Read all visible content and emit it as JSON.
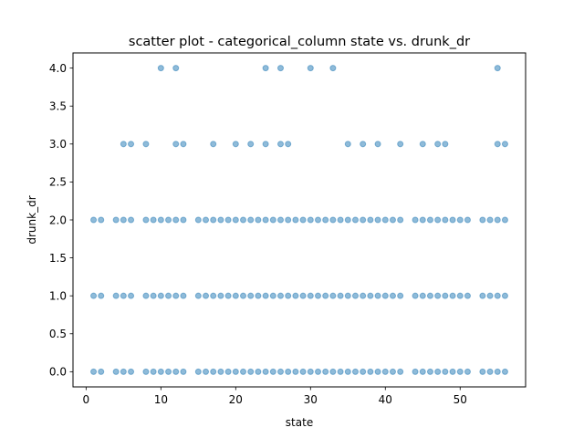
{
  "chart_data": {
    "type": "scatter",
    "title": "scatter plot - categorical_column state vs. drunk_dr",
    "xlabel": "state",
    "ylabel": "drunk_dr",
    "xlim": [
      -1.75,
      58.75
    ],
    "ylim": [
      -0.2,
      4.2
    ],
    "xticks": [
      0,
      10,
      20,
      30,
      40,
      50
    ],
    "yticks": [
      0.0,
      0.5,
      1.0,
      1.5,
      2.0,
      2.5,
      3.0,
      3.5,
      4.0
    ],
    "ytick_labels": [
      "0.0",
      "0.5",
      "1.0",
      "1.5",
      "2.0",
      "2.5",
      "3.0",
      "3.5",
      "4.0"
    ],
    "xtick_labels": [
      "0",
      "10",
      "20",
      "30",
      "40",
      "50"
    ],
    "grid": false,
    "point_color": "#1f77b4",
    "point_alpha": 0.5,
    "series": [
      {
        "y": 0,
        "x": [
          1,
          2,
          4,
          5,
          6,
          8,
          9,
          10,
          11,
          12,
          13,
          15,
          16,
          17,
          18,
          19,
          20,
          21,
          22,
          23,
          24,
          25,
          26,
          27,
          28,
          29,
          30,
          31,
          32,
          33,
          34,
          35,
          36,
          37,
          38,
          39,
          40,
          41,
          42,
          44,
          45,
          46,
          47,
          48,
          49,
          50,
          51,
          53,
          54,
          55,
          56
        ]
      },
      {
        "y": 1,
        "x": [
          1,
          2,
          4,
          5,
          6,
          8,
          9,
          10,
          11,
          12,
          13,
          15,
          16,
          17,
          18,
          19,
          20,
          21,
          22,
          23,
          24,
          25,
          26,
          27,
          28,
          29,
          30,
          31,
          32,
          33,
          34,
          35,
          36,
          37,
          38,
          39,
          40,
          41,
          42,
          44,
          45,
          46,
          47,
          48,
          49,
          50,
          51,
          53,
          54,
          55,
          56
        ]
      },
      {
        "y": 2,
        "x": [
          1,
          2,
          4,
          5,
          6,
          8,
          9,
          10,
          11,
          12,
          13,
          15,
          16,
          17,
          18,
          19,
          20,
          21,
          22,
          23,
          24,
          25,
          26,
          27,
          28,
          29,
          30,
          31,
          32,
          33,
          34,
          35,
          36,
          37,
          38,
          39,
          40,
          41,
          42,
          44,
          45,
          46,
          47,
          48,
          49,
          50,
          51,
          53,
          54,
          55,
          56
        ]
      },
      {
        "y": 3,
        "x": [
          5,
          6,
          8,
          12,
          13,
          17,
          20,
          22,
          24,
          26,
          27,
          35,
          37,
          39,
          42,
          45,
          47,
          48,
          55,
          56
        ]
      },
      {
        "y": 4,
        "x": [
          10,
          12,
          24,
          26,
          30,
          33,
          55
        ]
      }
    ]
  }
}
